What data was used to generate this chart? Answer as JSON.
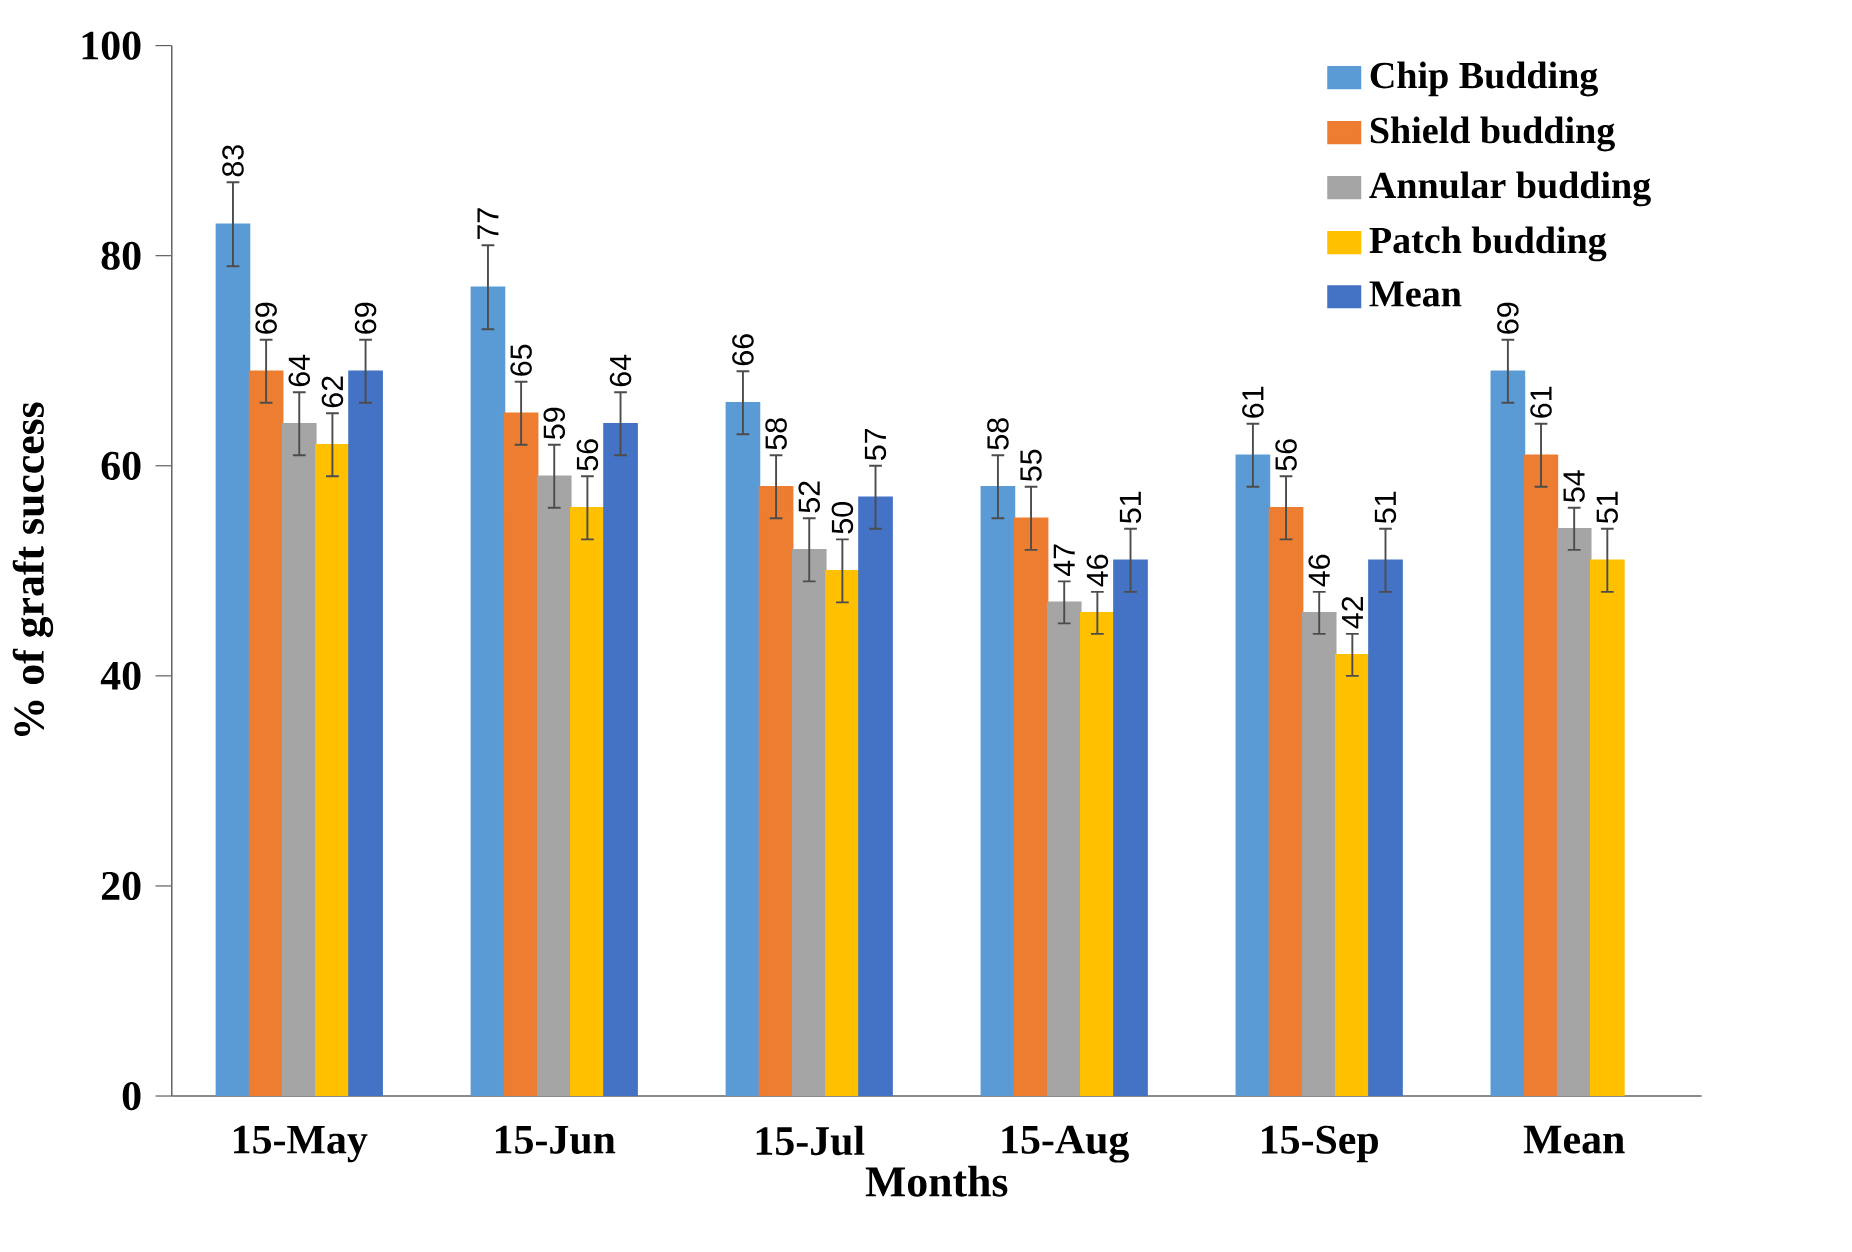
{
  "chart_data": {
    "type": "bar",
    "xlabel": "Months",
    "ylabel": "% of graft success",
    "categories": [
      "15-May",
      "15-Jun",
      "15-Jul",
      "15-Aug",
      "15-Sep",
      "Mean"
    ],
    "ylim": [
      0,
      100
    ],
    "yticks": [
      0,
      20,
      40,
      60,
      80,
      100
    ],
    "grid": false,
    "legend": "top right",
    "data_labels": true,
    "series": [
      {
        "name": "Chip Budding",
        "color": "#5b9bd5",
        "values": [
          83,
          77,
          66,
          58,
          61,
          69
        ],
        "errors": [
          4,
          4,
          3,
          3,
          3,
          3
        ]
      },
      {
        "name": "Shield budding",
        "color": "#ed7d31",
        "values": [
          69,
          65,
          58,
          55,
          56,
          61
        ],
        "errors": [
          3,
          3,
          3,
          3,
          3,
          3
        ]
      },
      {
        "name": "Annular budding",
        "color": "#a5a5a5",
        "values": [
          64,
          59,
          52,
          47,
          46,
          54
        ],
        "errors": [
          3,
          3,
          3,
          2,
          2,
          2
        ]
      },
      {
        "name": "Patch budding",
        "color": "#ffc000",
        "values": [
          62,
          56,
          50,
          46,
          42,
          51
        ],
        "errors": [
          3,
          3,
          3,
          2,
          2,
          3
        ]
      },
      {
        "name": "Mean",
        "color": "#4472c4",
        "values": [
          69,
          64,
          57,
          51,
          51,
          null
        ],
        "errors": [
          3,
          3,
          3,
          3,
          3,
          null
        ]
      }
    ]
  }
}
